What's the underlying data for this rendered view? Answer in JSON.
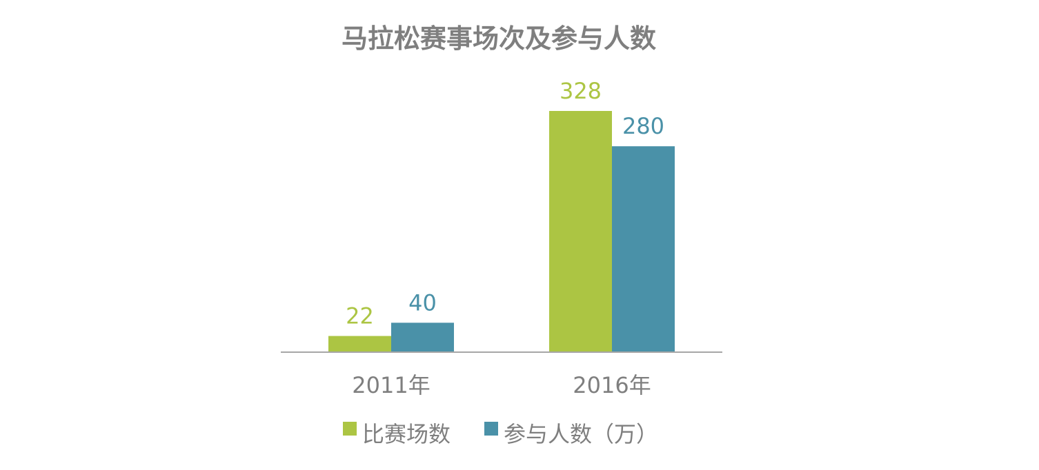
{
  "chart_data": {
    "type": "bar",
    "title": "马拉松赛事场次及参与人数",
    "categories": [
      "2011年",
      "2016年"
    ],
    "series": [
      {
        "name": "比赛场数",
        "values": [
          22,
          328
        ],
        "color": "#acc543"
      },
      {
        "name": "参与人数（万）",
        "values": [
          40,
          280
        ],
        "color": "#4a91a8"
      }
    ],
    "ylim": [
      0,
      328
    ],
    "grid": false,
    "legend": "bottom",
    "axis_color": "#a6a6a6"
  }
}
